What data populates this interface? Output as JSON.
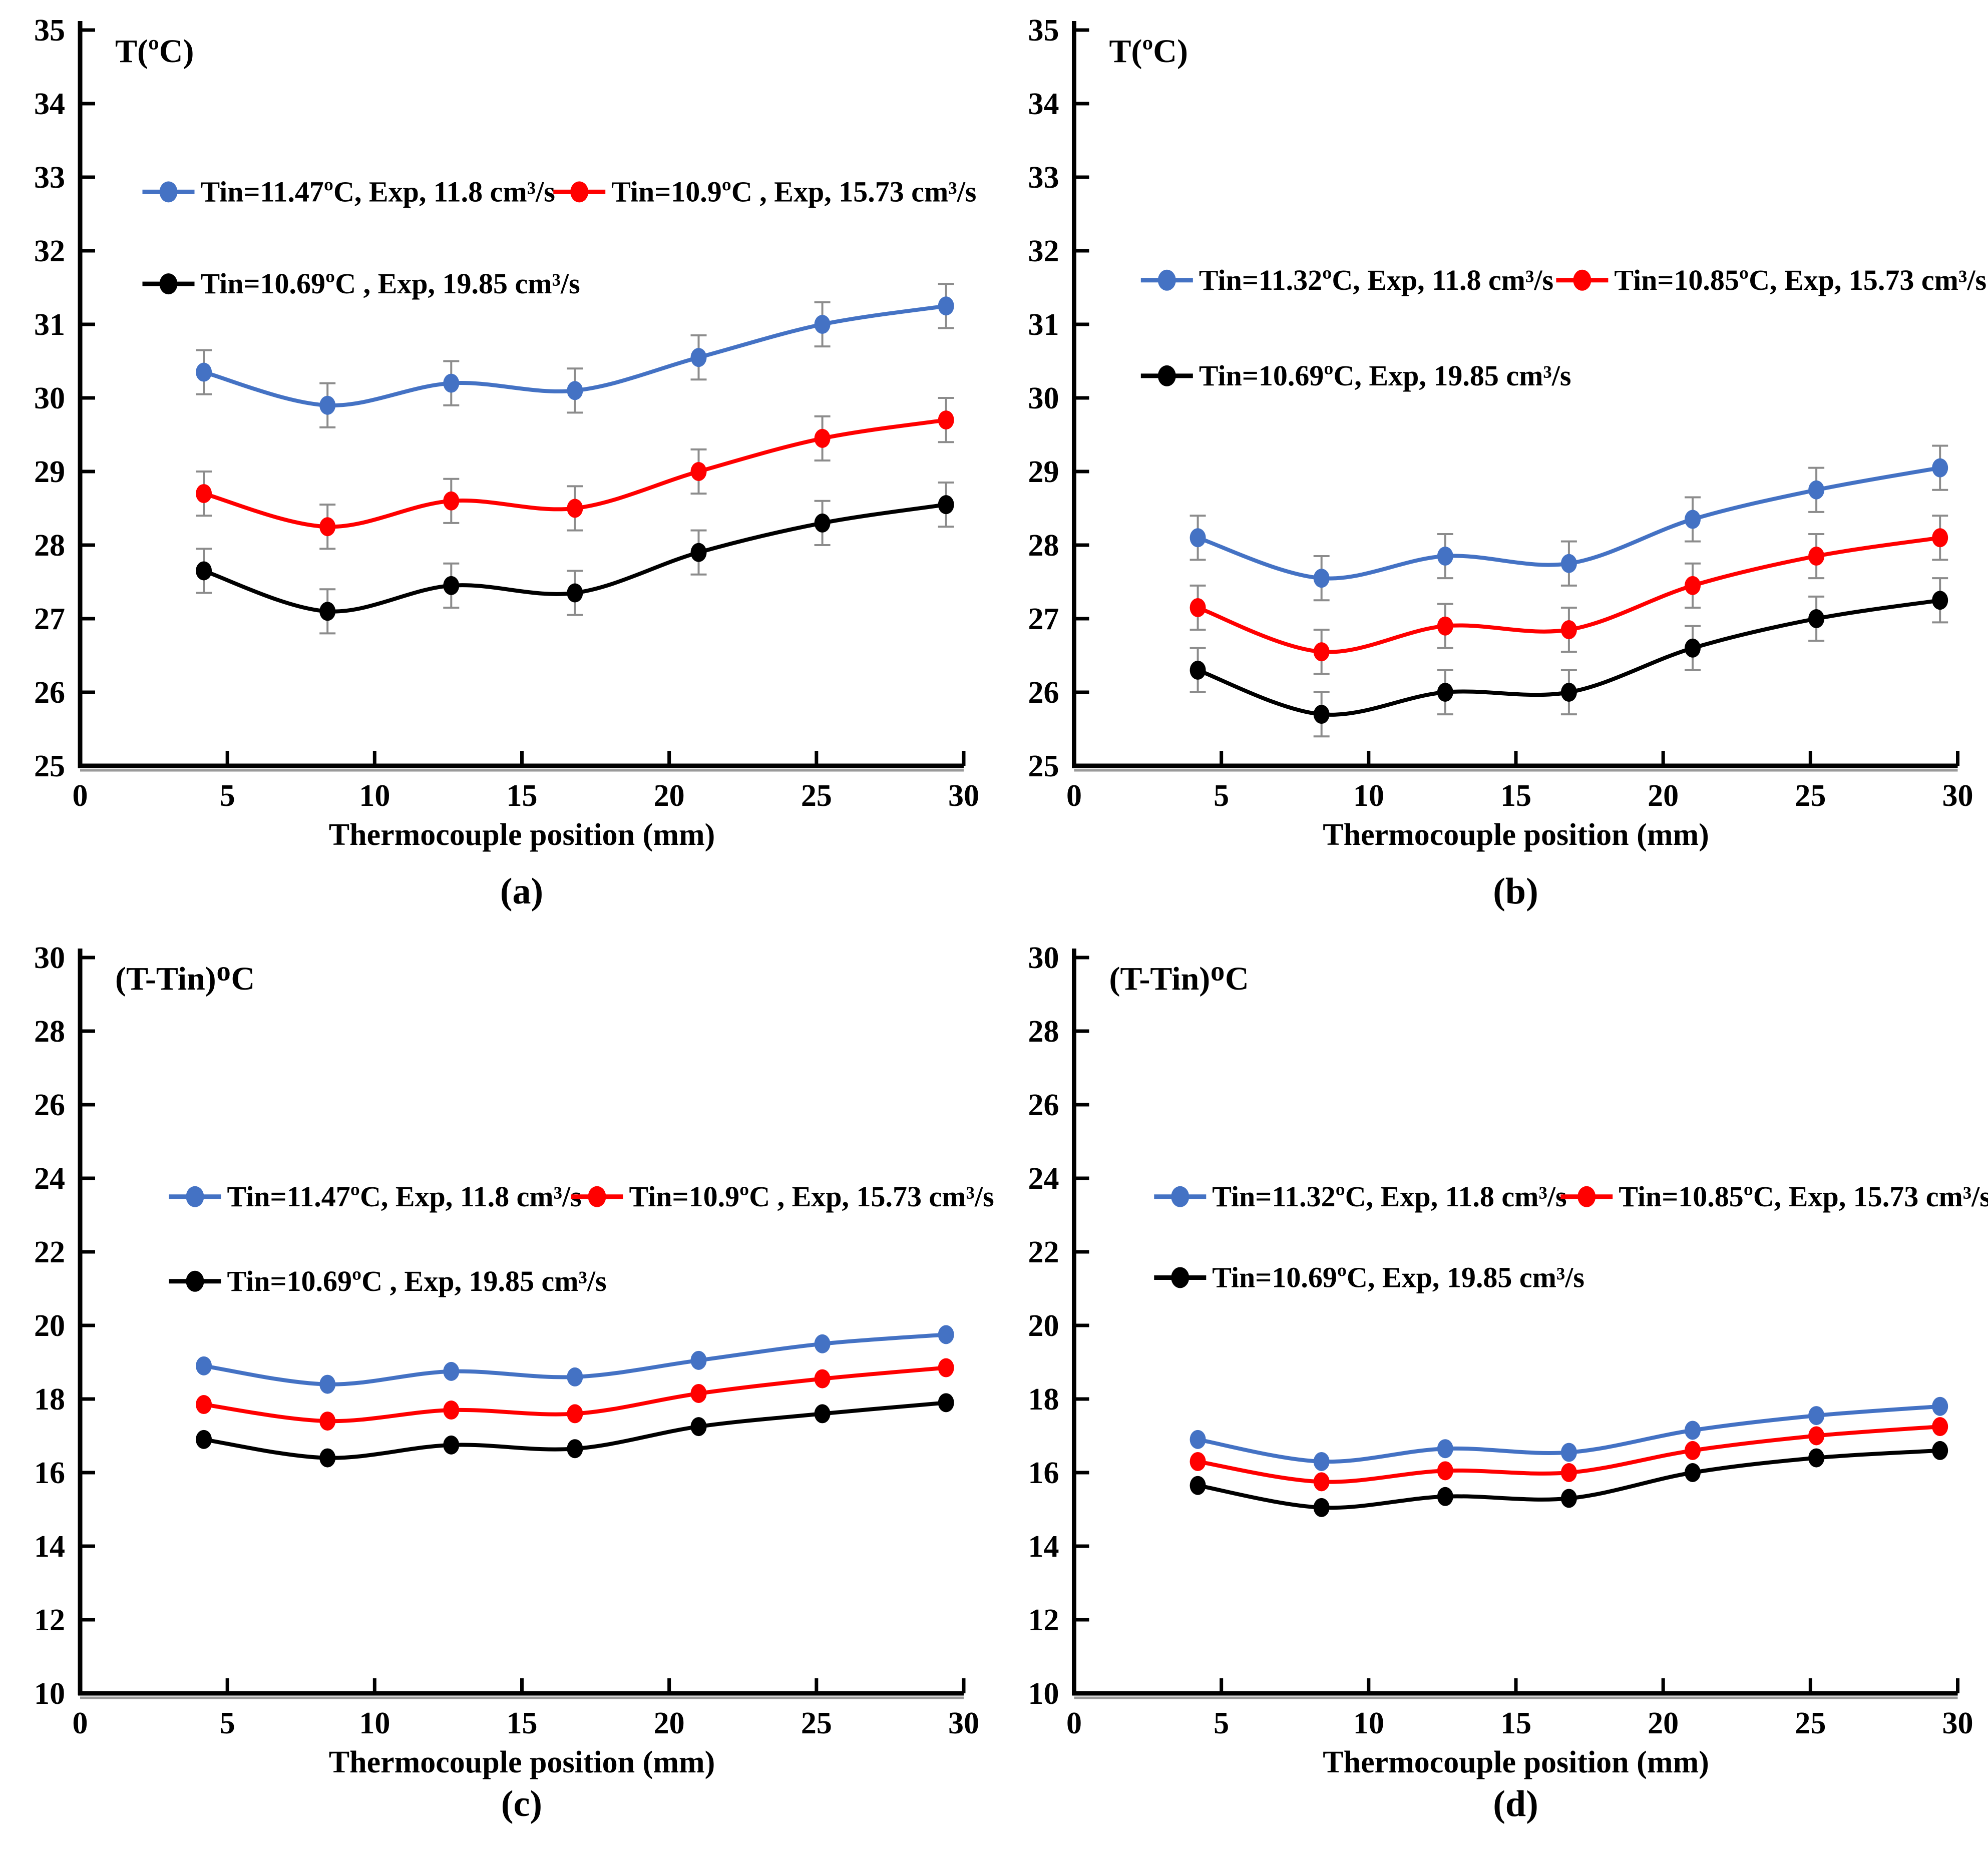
{
  "figure_title": "",
  "chart_data": [
    {
      "type": "line",
      "panel": "(a)",
      "ylabel": "T(ºC)",
      "xlabel": "Thermocouple position (mm)",
      "xlim": [
        0,
        30
      ],
      "ylim": [
        25,
        35
      ],
      "ytick_step": 1,
      "x_ticks": [
        0,
        5,
        10,
        15,
        20,
        25,
        30
      ],
      "x": [
        4.2,
        8.4,
        12.6,
        16.8,
        21,
        25.2,
        29.4
      ],
      "error": 0.3,
      "error_color": "#8c8c8c",
      "grid": false,
      "legend_pos": {
        "cols": [
          0.1,
          0.565
        ],
        "rows": [
          0.22,
          0.345
        ]
      },
      "series": [
        {
          "name": "Tin=11.47ºC, Exp, 11.8 cm³/s",
          "color": "#4472C4",
          "values": [
            30.35,
            29.9,
            30.2,
            30.1,
            30.55,
            31.0,
            31.25
          ]
        },
        {
          "name": "Tin=10.9ºC , Exp, 15.73 cm³/s",
          "color": "#FF0000",
          "values": [
            28.7,
            28.25,
            28.6,
            28.5,
            29.0,
            29.45,
            29.7
          ]
        },
        {
          "name": "Tin=10.69ºC , Exp, 19.85 cm³/s",
          "color": "#000000",
          "values": [
            27.65,
            27.1,
            27.45,
            27.35,
            27.9,
            28.3,
            28.55
          ]
        }
      ]
    },
    {
      "type": "line",
      "panel": "(b)",
      "ylabel": "T(ºC)",
      "xlabel": "Thermocouple position (mm)",
      "xlim": [
        0,
        30
      ],
      "ylim": [
        25,
        35
      ],
      "ytick_step": 1,
      "x_ticks": [
        0,
        5,
        10,
        15,
        20,
        25,
        30
      ],
      "x": [
        4.2,
        8.4,
        12.6,
        16.8,
        21,
        25.2,
        29.4
      ],
      "error": 0.3,
      "error_color": "#8c8c8c",
      "grid": false,
      "legend_pos": {
        "cols": [
          0.105,
          0.575
        ],
        "rows": [
          0.34,
          0.47
        ]
      },
      "series": [
        {
          "name": "Tin=11.32ºC, Exp, 11.8 cm³/s",
          "color": "#4472C4",
          "values": [
            28.1,
            27.55,
            27.85,
            27.75,
            28.35,
            28.75,
            29.05
          ]
        },
        {
          "name": "Tin=10.85ºC, Exp, 15.73 cm³/s",
          "color": "#FF0000",
          "values": [
            27.15,
            26.55,
            26.9,
            26.85,
            27.45,
            27.85,
            28.1
          ]
        },
        {
          "name": "Tin=10.69ºC, Exp, 19.85 cm³/s",
          "color": "#000000",
          "values": [
            26.3,
            25.7,
            26.0,
            26.0,
            26.6,
            27.0,
            27.25
          ]
        }
      ]
    },
    {
      "type": "line",
      "panel": "(c)",
      "ylabel": "(T-Tin)ᴼC",
      "xlabel": "Thermocouple position (mm)",
      "xlim": [
        0,
        30
      ],
      "ylim": [
        10,
        30
      ],
      "ytick_step": 2,
      "x_ticks": [
        0,
        5,
        10,
        15,
        20,
        25,
        30
      ],
      "x": [
        4.2,
        8.4,
        12.6,
        16.8,
        21,
        25.2,
        29.4
      ],
      "error": 0,
      "error_color": "#8c8c8c",
      "grid": false,
      "legend_pos": {
        "cols": [
          0.13,
          0.585
        ],
        "rows": [
          0.325,
          0.44
        ]
      },
      "series": [
        {
          "name": "Tin=11.47ºC, Exp, 11.8 cm³/s",
          "color": "#4472C4",
          "values": [
            18.9,
            18.4,
            18.75,
            18.6,
            19.05,
            19.5,
            19.75
          ]
        },
        {
          "name": "Tin=10.9ºC , Exp, 15.73 cm³/s",
          "color": "#FF0000",
          "values": [
            17.85,
            17.4,
            17.7,
            17.6,
            18.15,
            18.55,
            18.85
          ]
        },
        {
          "name": "Tin=10.69ºC , Exp, 19.85 cm³/s",
          "color": "#000000",
          "values": [
            16.9,
            16.4,
            16.75,
            16.65,
            17.25,
            17.6,
            17.9
          ]
        }
      ]
    },
    {
      "type": "line",
      "panel": "(d)",
      "ylabel": "(T-Tin)ᴼC",
      "xlabel": "Thermocouple position (mm)",
      "xlim": [
        0,
        30
      ],
      "ylim": [
        10,
        30
      ],
      "ytick_step": 2,
      "x_ticks": [
        0,
        5,
        10,
        15,
        20,
        25,
        30
      ],
      "x": [
        4.2,
        8.4,
        12.6,
        16.8,
        21,
        25.2,
        29.4
      ],
      "error": 0,
      "error_color": "#8c8c8c",
      "grid": false,
      "legend_pos": {
        "cols": [
          0.12,
          0.58
        ],
        "rows": [
          0.325,
          0.435
        ]
      },
      "series": [
        {
          "name": "Tin=11.32ºC, Exp, 11.8 cm³/s",
          "color": "#4472C4",
          "values": [
            16.9,
            16.3,
            16.65,
            16.55,
            17.15,
            17.55,
            17.8
          ]
        },
        {
          "name": "Tin=10.85ºC, Exp, 15.73 cm³/s",
          "color": "#FF0000",
          "values": [
            16.3,
            15.75,
            16.05,
            16.0,
            16.6,
            17.0,
            17.25
          ]
        },
        {
          "name": "Tin=10.69ºC, Exp, 19.85 cm³/s",
          "color": "#000000",
          "values": [
            15.65,
            15.05,
            15.35,
            15.3,
            16.0,
            16.4,
            16.6
          ]
        }
      ]
    }
  ]
}
